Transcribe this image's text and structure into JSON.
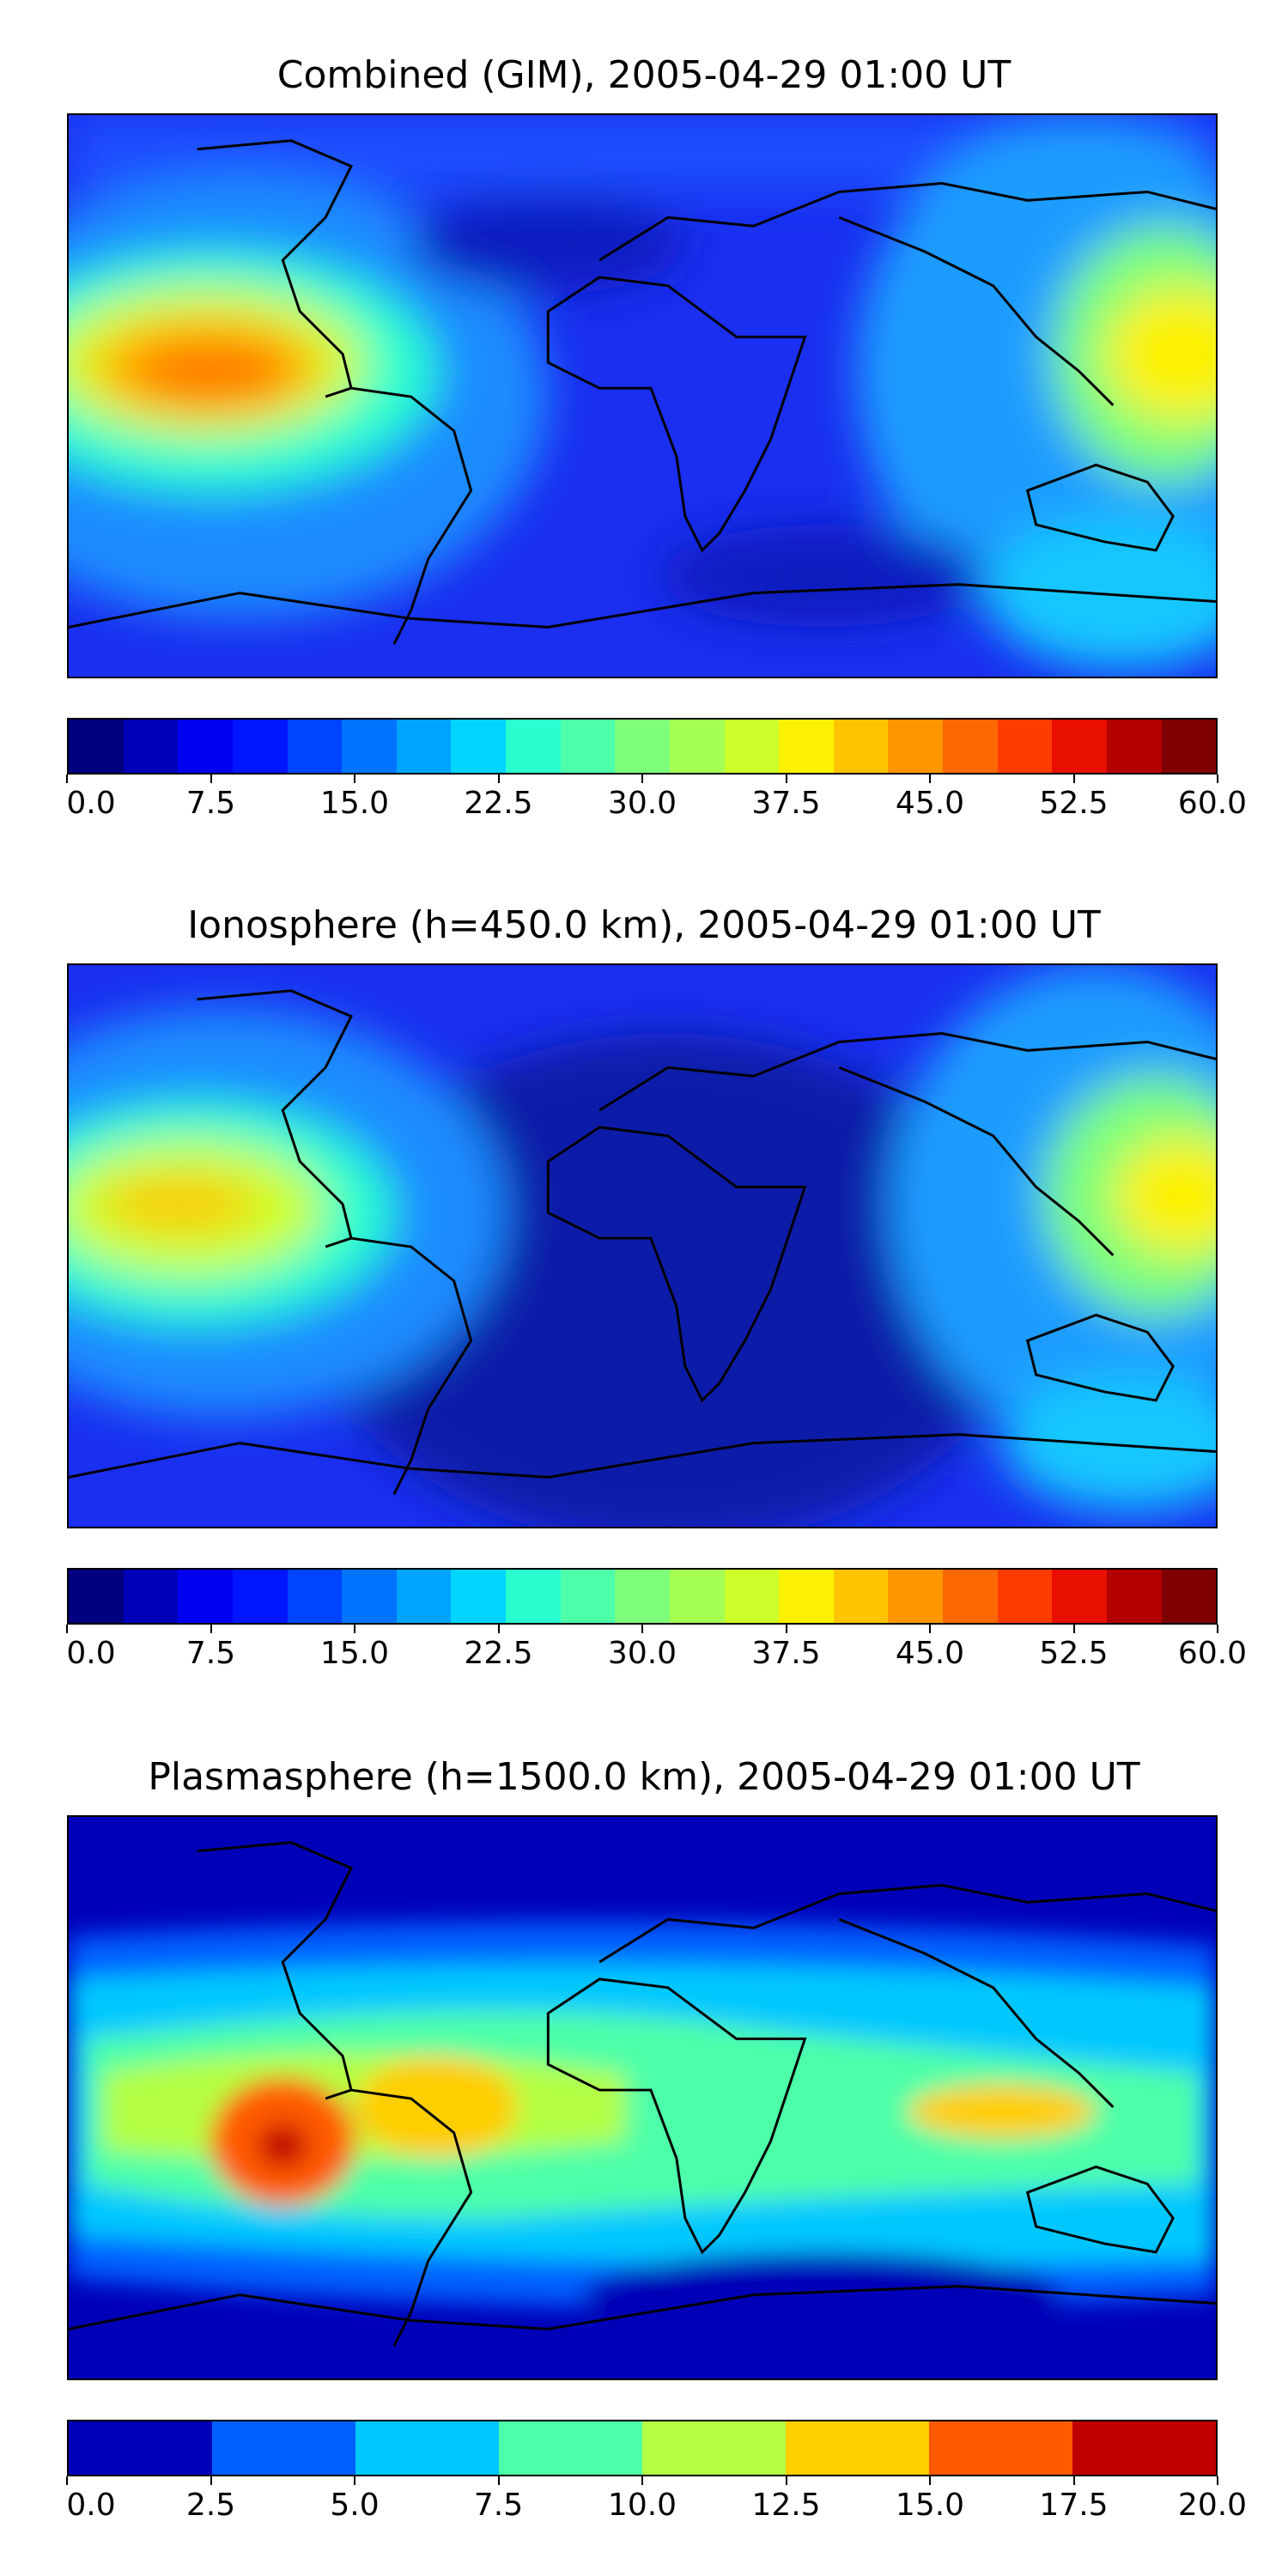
{
  "panels": [
    {
      "title": "Combined (GIM), 2005-04-29 01:00 UT",
      "colorbar": {
        "ticks": [
          "0.0",
          "7.5",
          "15.0",
          "22.5",
          "30.0",
          "37.5",
          "45.0",
          "52.5",
          "60.0"
        ],
        "range": [
          0,
          60
        ],
        "colors": [
          "#00007f",
          "#0000b8",
          "#0000f1",
          "#0016ff",
          "#0044ff",
          "#0074ff",
          "#00a4ff",
          "#00d4ff",
          "#29ffce",
          "#4effa9",
          "#7dff7a",
          "#a4ff53",
          "#cdff2a",
          "#fbf100",
          "#ffc400",
          "#ff9600",
          "#ff6800",
          "#ff3b00",
          "#e80e00",
          "#b30000",
          "#7f0000"
        ]
      }
    },
    {
      "title": "Ionosphere  (h=450.0 km), 2005-04-29 01:00 UT",
      "colorbar": {
        "ticks": [
          "0.0",
          "7.5",
          "15.0",
          "22.5",
          "30.0",
          "37.5",
          "45.0",
          "52.5",
          "60.0"
        ],
        "range": [
          0,
          60
        ],
        "colors": [
          "#00007f",
          "#0000b8",
          "#0000f1",
          "#0016ff",
          "#0044ff",
          "#0074ff",
          "#00a4ff",
          "#00d4ff",
          "#29ffce",
          "#4effa9",
          "#7dff7a",
          "#a4ff53",
          "#cdff2a",
          "#fbf100",
          "#ffc400",
          "#ff9600",
          "#ff6800",
          "#ff3b00",
          "#e80e00",
          "#b30000",
          "#7f0000"
        ]
      }
    },
    {
      "title": "Plasmasphere (h=1500.0 km), 2005-04-29 01:00 UT",
      "colorbar": {
        "ticks": [
          "0.0",
          "2.5",
          "5.0",
          "7.5",
          "10.0",
          "12.5",
          "15.0",
          "17.5",
          "20.0"
        ],
        "range": [
          0,
          20
        ],
        "colors": [
          "#0000b8",
          "#0060ff",
          "#00c8ff",
          "#4effa9",
          "#b4ff44",
          "#ffce00",
          "#ff5a00",
          "#c00000"
        ]
      }
    }
  ]
}
